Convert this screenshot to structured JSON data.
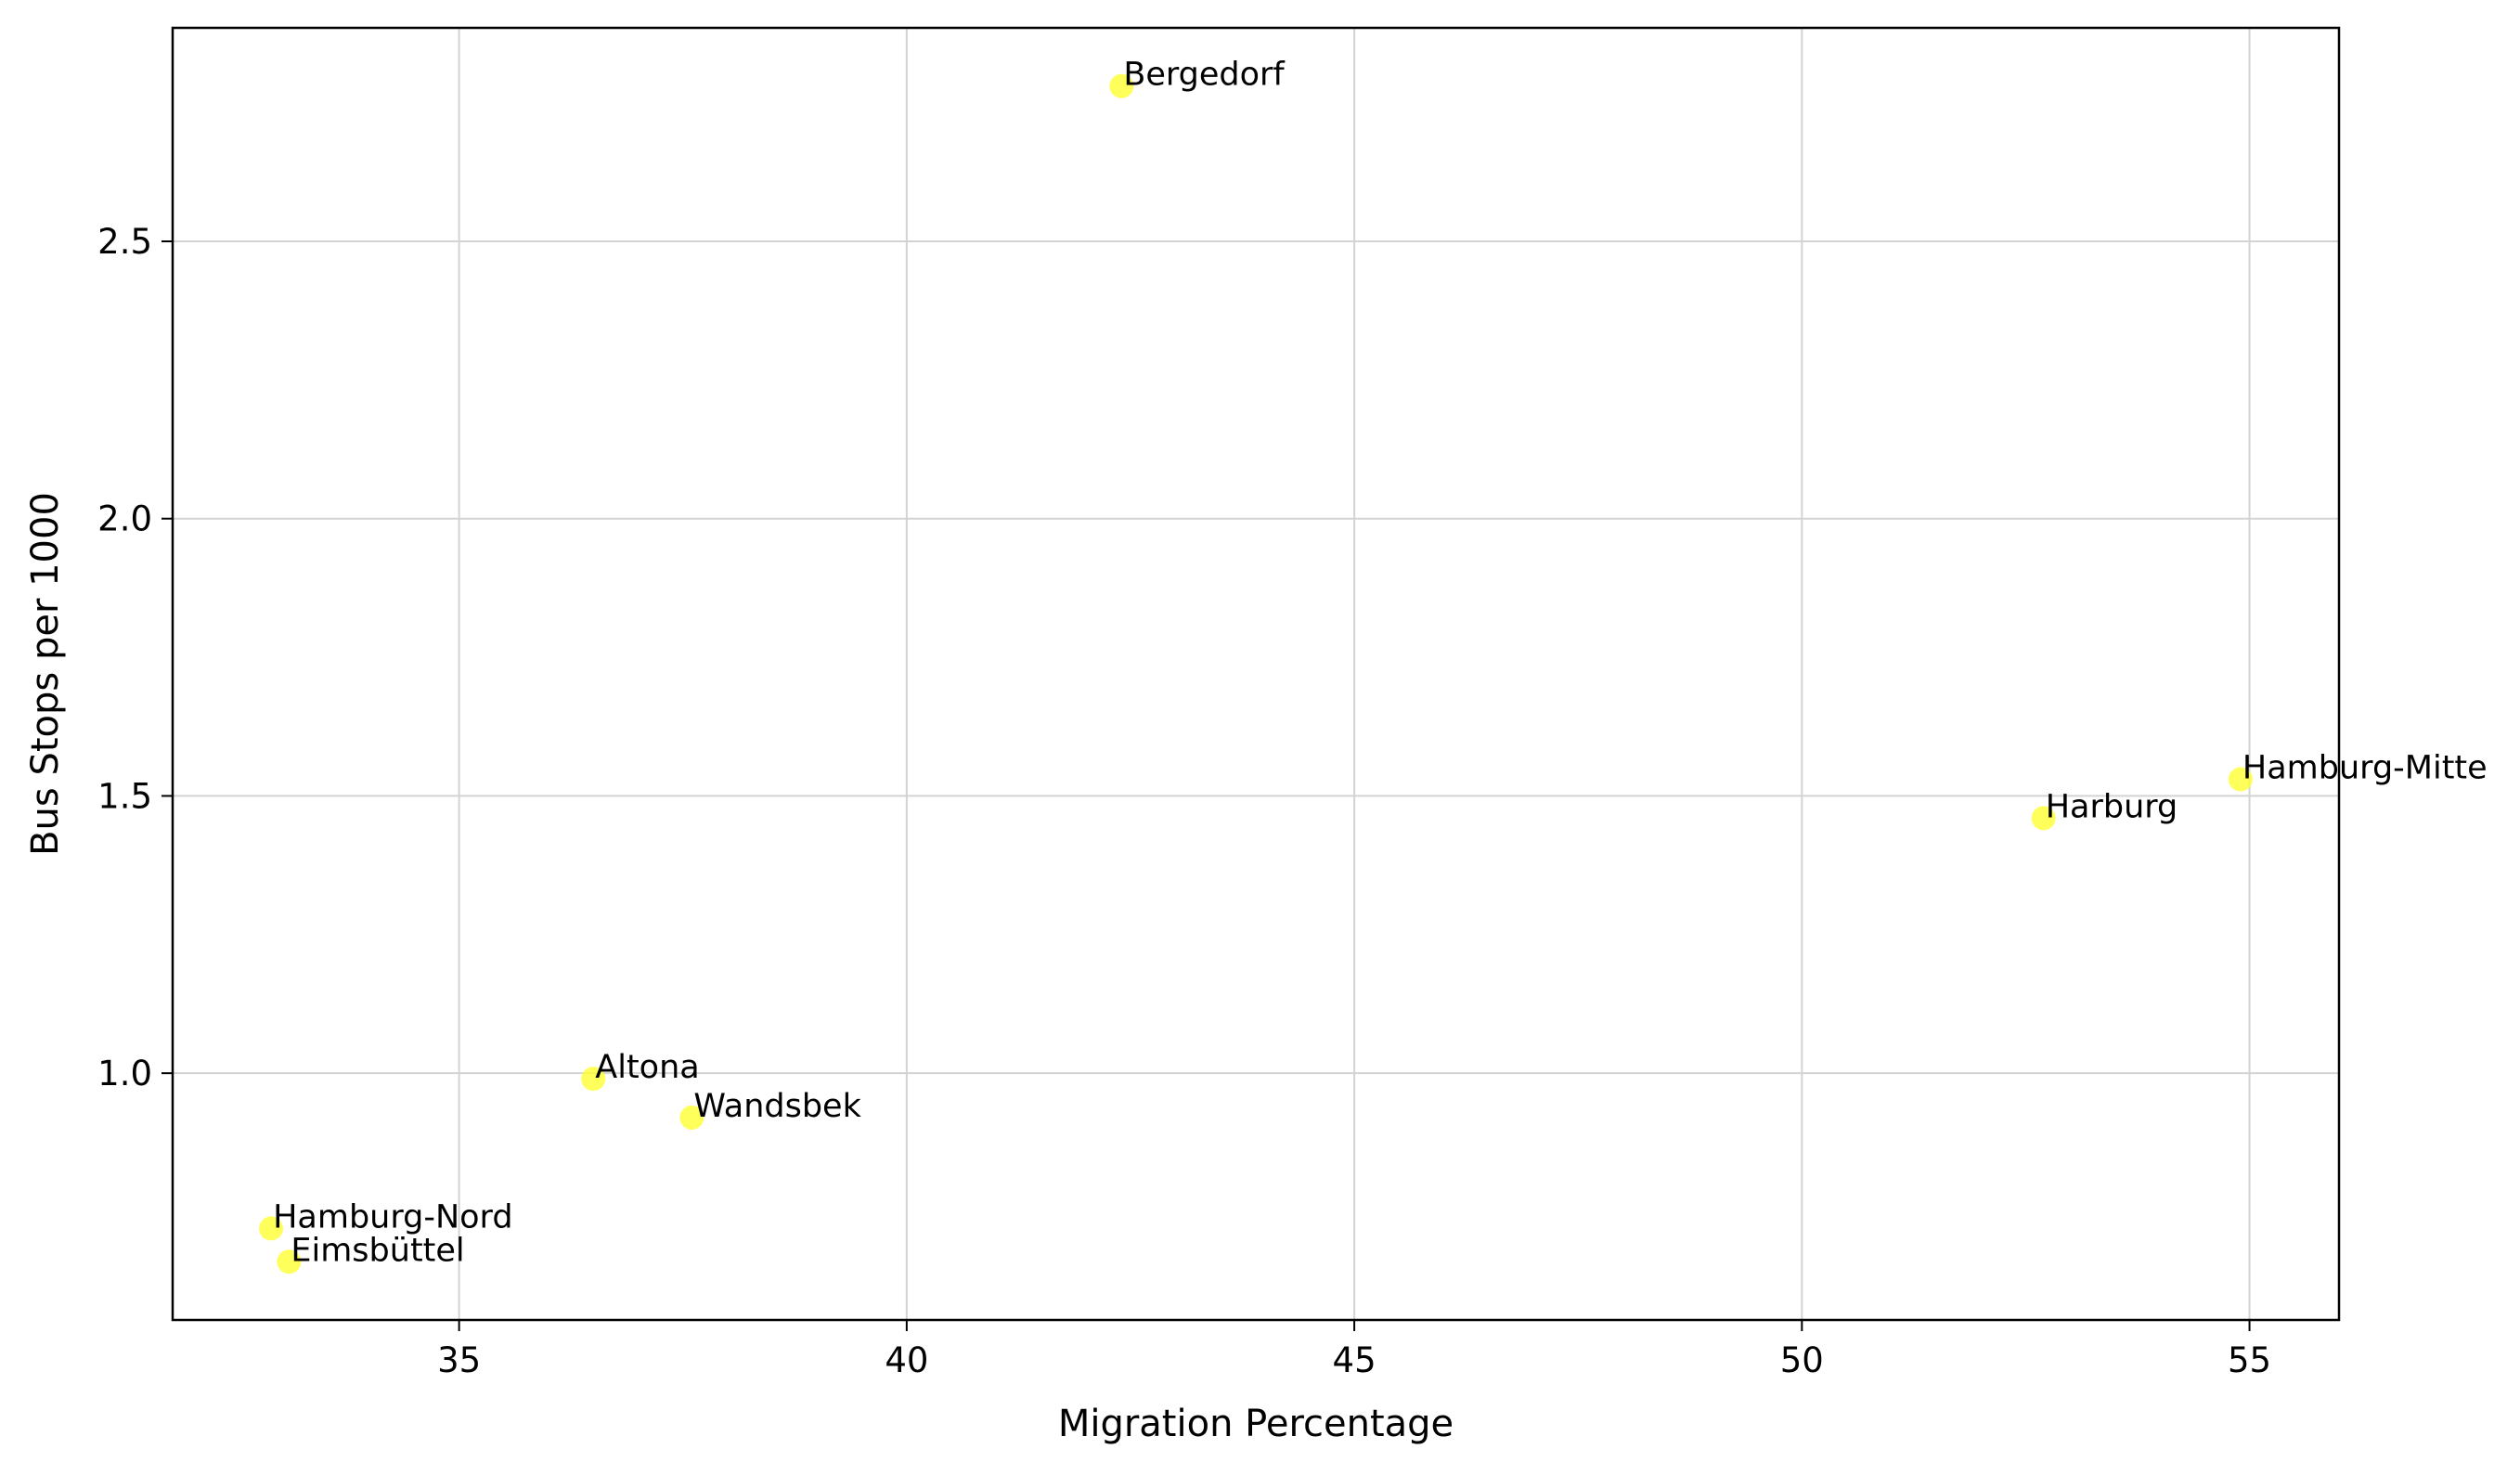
{
  "chart_data": {
    "type": "scatter",
    "xlabel": "Migration Percentage",
    "ylabel": "Bus Stops per 1000",
    "xlim": [
      31.8,
      56.0
    ],
    "ylim": [
      0.555,
      2.885
    ],
    "xticks": [
      35,
      40,
      45,
      50,
      55
    ],
    "yticks": [
      1.0,
      1.5,
      2.0,
      2.5
    ],
    "xtick_labels": [
      "35",
      "40",
      "45",
      "50",
      "55"
    ],
    "ytick_labels": [
      "1.0",
      "1.5",
      "2.0",
      "2.5"
    ],
    "grid": true,
    "marker_color": "#ffff33",
    "points": [
      {
        "label": "Bergedorf",
        "x": 42.4,
        "y": 2.78
      },
      {
        "label": "Hamburg-Mitte",
        "x": 54.9,
        "y": 1.53
      },
      {
        "label": "Harburg",
        "x": 52.7,
        "y": 1.46
      },
      {
        "label": "Altona",
        "x": 36.5,
        "y": 0.99
      },
      {
        "label": "Wandsbek",
        "x": 37.6,
        "y": 0.92
      },
      {
        "label": "Hamburg-Nord",
        "x": 32.9,
        "y": 0.72
      },
      {
        "label": "Eimsbüttel",
        "x": 33.1,
        "y": 0.66
      }
    ]
  }
}
